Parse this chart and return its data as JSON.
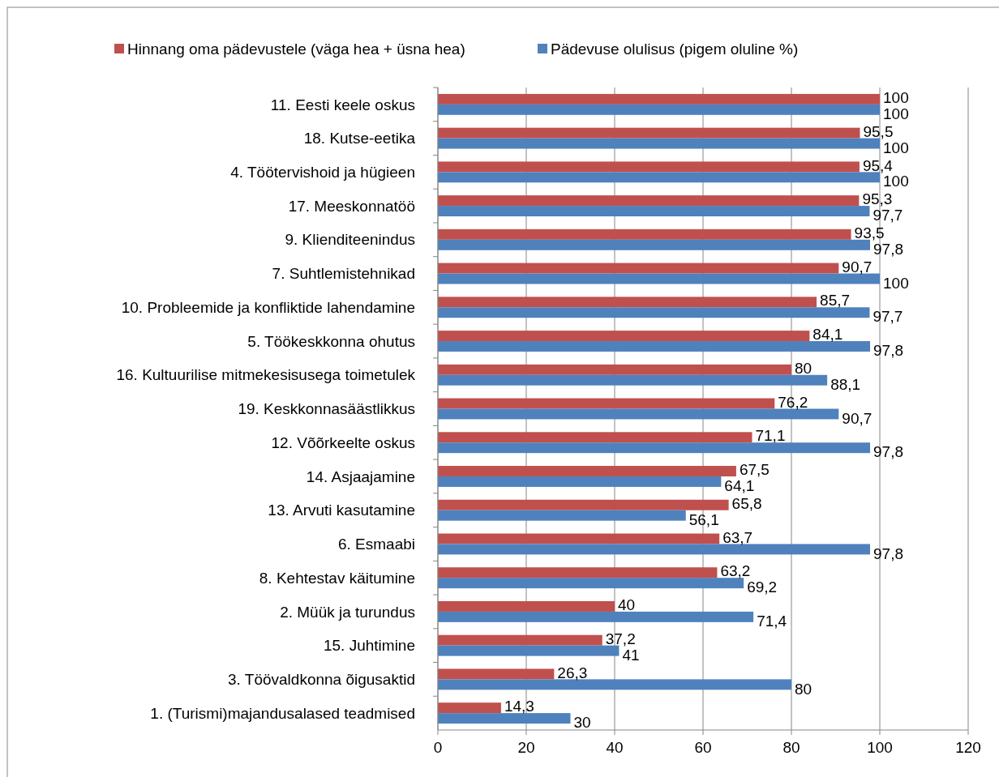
{
  "chart_data": {
    "type": "bar",
    "orientation": "horizontal",
    "categories": [
      "11. Eesti keele oskus",
      "18. Kutse-eetika",
      "4. Töötervishoid ja hügieen",
      "17. Meeskonnatöö",
      "9. Klienditeenindus",
      "7. Suhtlemistehnikad",
      "10. Probleemide ja konfliktide lahendamine",
      "5. Töökeskkonna ohutus",
      "16. Kultuurilise mitmekesisusega toimetulek",
      "19. Keskkonnasäästlikkus",
      "12. Võõrkeelte oskus",
      "14. Asjaajamine",
      "13. Arvuti kasutamine",
      "6. Esmaabi",
      "8. Kehtestav käitumine",
      "2. Müük ja turundus",
      "15. Juhtimine",
      "3. Töövaldkonna õigusaktid",
      "1. (Turismi)majandusalased teadmised"
    ],
    "series": [
      {
        "name": "Hinnang oma pädevustele (väga hea + üsna hea)",
        "color": "#c0504d",
        "values": [
          100,
          95.5,
          95.4,
          95.3,
          93.5,
          90.7,
          85.7,
          84.1,
          80,
          76.2,
          71.1,
          67.5,
          65.8,
          63.7,
          63.2,
          40,
          37.2,
          26.3,
          14.3
        ],
        "value_labels": [
          "100",
          "95,5",
          "95,4",
          "95,3",
          "93,5",
          "90,7",
          "85,7",
          "84,1",
          "80",
          "76,2",
          "71,1",
          "67,5",
          "65,8",
          "63,7",
          "63,2",
          "40",
          "37,2",
          "26,3",
          "14,3"
        ]
      },
      {
        "name": "Pädevuse olulisus (pigem oluline %)",
        "color": "#4f81bd",
        "values": [
          100,
          100,
          100,
          97.7,
          97.8,
          100,
          97.7,
          97.8,
          88.1,
          90.7,
          97.8,
          64.1,
          56.1,
          97.8,
          69.2,
          71.4,
          41,
          80,
          30
        ],
        "value_labels": [
          "100",
          "100",
          "100",
          "97,7",
          "97,8",
          "100",
          "97,7",
          "97,8",
          "88,1",
          "90,7",
          "97,8",
          "64,1",
          "56,1",
          "97,8",
          "69,2",
          "71,4",
          "41",
          "80",
          "30"
        ]
      }
    ],
    "xlim": [
      0,
      120
    ],
    "xticks": [
      0,
      20,
      40,
      60,
      80,
      100,
      120
    ],
    "grid": "x",
    "legend": "top"
  }
}
